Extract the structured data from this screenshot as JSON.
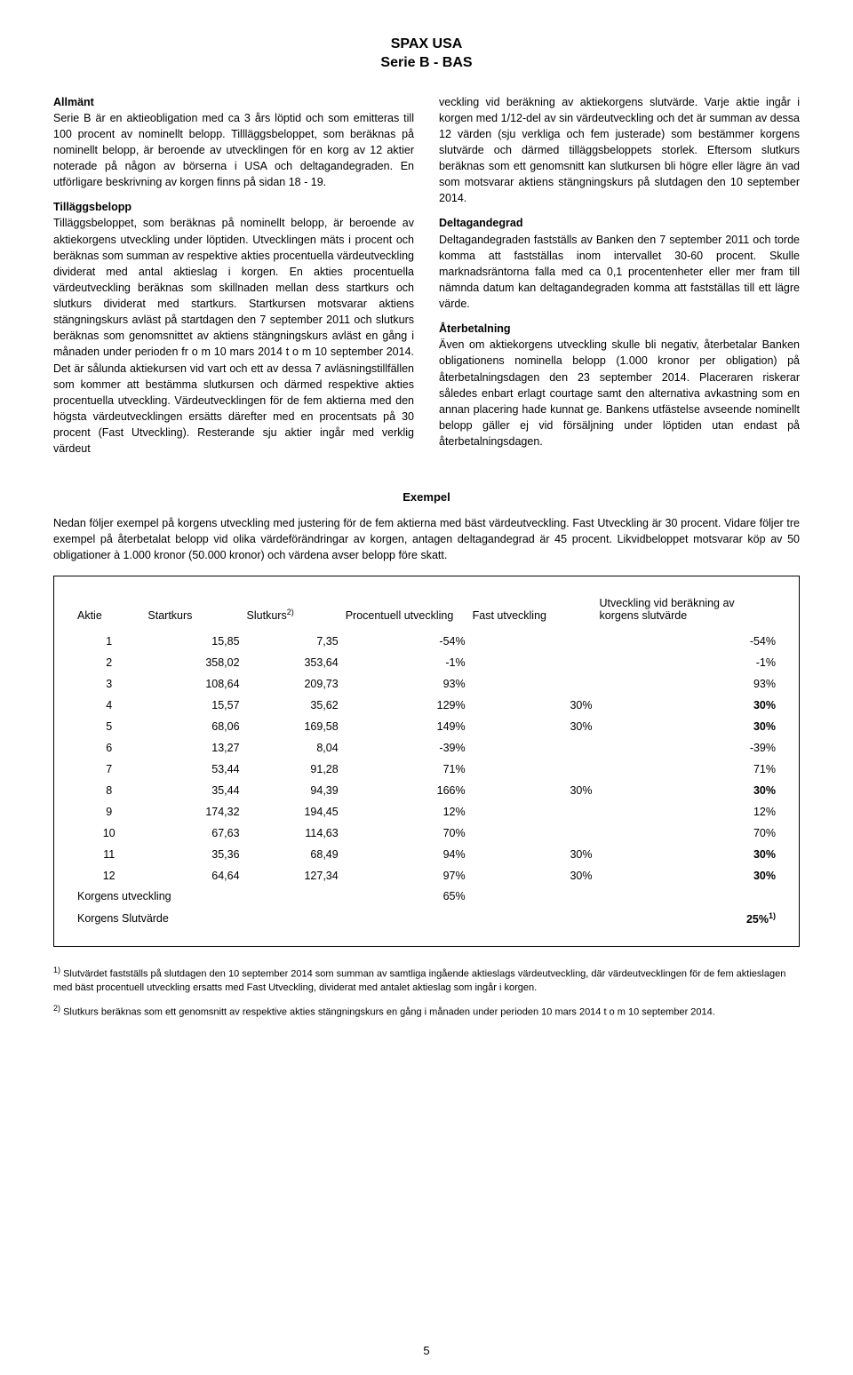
{
  "title_line1": "SPAX USA",
  "title_line2": "Serie B - BAS",
  "left": {
    "allmant_h": "Allmänt",
    "allmant_p": "Serie B är en aktieobligation med ca 3 års löptid och som emitteras till 100 procent av nominellt belopp. Till­läggsbeloppet, som beräknas på nominellt belopp, är be­roende av utvecklingen för en korg av 12 aktier noterade på någon av börserna i USA och deltagandegraden. En utförligare beskrivning av korgen finns på sidan 18 - 19.",
    "tillaggs_h": "Tilläggsbelopp",
    "tillaggs_p": "Tilläggsbeloppet, som beräknas på nominellt belopp, är beroende av aktiekorgens utveckling under löptiden. Utvecklingen mäts i procent och beräknas som sum­man av respektive akties procentuella värdeutveckling dividerat med antal aktieslag i korgen. En akties procen­tuella värdeutveckling beräknas som skillnaden mellan dess startkurs och slutkurs dividerat med startkurs. Startkursen motsvarar aktiens stängningskurs avläst på startdagen den 7 september 2011 och slutkurs beräknas som genomsnittet av aktiens stängningskurs avläst en gång i månaden under perioden fr o m 10 mars 2014 t o m 10 september 2014. Det är sålunda aktiekursen vid vart och ett av dessa 7 avläsningstillfällen som kommer att bestämma slutkursen och därmed respektive akties procentuella utveckling. Värdeutvecklingen för de fem aktierna med den högsta värdeutvecklingen ersätts där­efter med en procentsats på 30 procent (Fast Utveck­ling). Resterande sju aktier ingår med verklig värdeut­"
  },
  "right": {
    "cont_p": "veckling vid beräkning av aktiekorgens slutvärde. Varje aktie ingår i korgen med 1/12-del av sin värdeutveckling och det är summan av dessa 12 värden (sju verkliga och fem justerade) som bestämmer korgens slutvärde och därmed tilläggsbeloppets storlek. Eftersom slutkurs beräknas som ett genomsnitt kan slutkursen bli högre eller lägre än vad som motsvarar aktiens stängningskurs på slutdagen den 10 september 2014.",
    "deltag_h": "Deltagandegrad",
    "deltag_p": "Deltagandegraden fastställs av Banken den 7 september 2011 och torde komma att fastställas inom intervallet 30-60 procent. Skulle marknadsräntorna falla med ca 0,1 procentenheter eller mer fram till nämnda datum kan del­tagandegraden komma att fastställas till ett lägre värde.",
    "ater_h": "Återbetalning",
    "ater_p": "Även om aktiekorgens utveckling skulle bli negativ, åter­betalar Banken obligationens nominella belopp (1.000 kronor per obligation) på återbetalningsdagen den 23 september 2014. Placeraren riskerar således enbart erlagt courtage samt den alternativa avkastning som en annan placering hade kunnat ge. Bankens utfästelse avseende nominellt belopp gäller ej vid försäljning under löptiden utan endast på återbetalningsdagen."
  },
  "example_h": "Exempel",
  "example_intro": "Nedan följer exempel på korgens utveckling med justering för de fem aktierna med bäst värdeutveckling. Fast Ut­veckling är 30 procent. Vidare följer tre exempel på återbetalat belopp vid olika värdeförändringar av korgen, antagen deltagandegrad är 45 procent. Likvidbeloppet motsvarar köp av 50 obligationer à 1.000 kronor (50.000 kronor) och värdena avser belopp före skatt.",
  "table": {
    "headers": {
      "aktie": "Aktie",
      "start": "Startkurs",
      "slut": "Slutkurs",
      "slut_sup": "2)",
      "proc": "Procentuell utveckling",
      "fast": "Fast utveckling",
      "utv": "Utveckling vid beräkning av korgens slutvärde"
    },
    "rows": [
      {
        "a": "1",
        "s": "15,85",
        "k": "7,35",
        "p": "-54%",
        "f": "",
        "u": "-54%",
        "bold": false
      },
      {
        "a": "2",
        "s": "358,02",
        "k": "353,64",
        "p": "-1%",
        "f": "",
        "u": "-1%",
        "bold": false
      },
      {
        "a": "3",
        "s": "108,64",
        "k": "209,73",
        "p": "93%",
        "f": "",
        "u": "93%",
        "bold": false
      },
      {
        "a": "4",
        "s": "15,57",
        "k": "35,62",
        "p": "129%",
        "f": "30%",
        "u": "30%",
        "bold": true
      },
      {
        "a": "5",
        "s": "68,06",
        "k": "169,58",
        "p": "149%",
        "f": "30%",
        "u": "30%",
        "bold": true
      },
      {
        "a": "6",
        "s": "13,27",
        "k": "8,04",
        "p": "-39%",
        "f": "",
        "u": "-39%",
        "bold": false
      },
      {
        "a": "7",
        "s": "53,44",
        "k": "91,28",
        "p": "71%",
        "f": "",
        "u": "71%",
        "bold": false
      },
      {
        "a": "8",
        "s": "35,44",
        "k": "94,39",
        "p": "166%",
        "f": "30%",
        "u": "30%",
        "bold": true
      },
      {
        "a": "9",
        "s": "174,32",
        "k": "194,45",
        "p": "12%",
        "f": "",
        "u": "12%",
        "bold": false
      },
      {
        "a": "10",
        "s": "67,63",
        "k": "114,63",
        "p": "70%",
        "f": "",
        "u": "70%",
        "bold": false
      },
      {
        "a": "11",
        "s": "35,36",
        "k": "68,49",
        "p": "94%",
        "f": "30%",
        "u": "30%",
        "bold": true
      },
      {
        "a": "12",
        "s": "64,64",
        "k": "127,34",
        "p": "97%",
        "f": "30%",
        "u": "30%",
        "bold": true
      }
    ],
    "korg_utv_label": "Korgens utveckling",
    "korg_utv_val": "65%",
    "korg_slut_label": "Korgens Slutvärde",
    "korg_slut_val": "25%",
    "korg_slut_sup": "1)"
  },
  "footnote1_sup": "1)",
  "footnote1": " Slutvärdet fastställs på slutdagen den 10 september 2014 som summan av samtliga ingående aktieslags värdeutveckling, där värdeutvecklingen för de fem aktieslagen med bäst procentuell utveckling ersatts med Fast Utveckling, dividerat med antalet aktieslag som ingår i korgen.",
  "footnote2_sup": "2)",
  "footnote2": " Slutkurs beräknas som ett genomsnitt av respektive akties stängningskurs en gång i månaden under perioden 10 mars 2014 t o m 10 september 2014.",
  "page_number": "5"
}
